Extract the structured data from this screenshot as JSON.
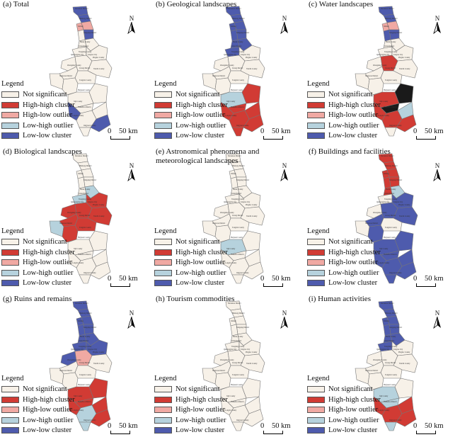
{
  "colors": {
    "not_significant": "#f7f1e8",
    "high_high": "#d13b34",
    "high_low": "#f0a9a3",
    "low_high": "#b6d2dd",
    "low_low": "#4e5bad",
    "outline": "#777777",
    "extra_dark": "#1a1a1a"
  },
  "legend": {
    "title": "Legend",
    "items": [
      {
        "key": "ns",
        "label": "Not significant"
      },
      {
        "key": "hh",
        "label": "High-high cluster"
      },
      {
        "key": "hl",
        "label": "High-low outlier"
      },
      {
        "key": "lh",
        "label": "Low-high outlier"
      },
      {
        "key": "ll",
        "label": "Low-low cluster"
      }
    ]
  },
  "scale": {
    "zero": "0",
    "text": "50 km"
  },
  "north_label": "N",
  "panels": [
    {
      "title": "(a) Total",
      "regions": [
        "ll",
        "ll",
        "hl",
        "hl",
        "ll",
        "ns",
        "ns",
        "ns",
        "ns",
        "ns",
        "ns",
        "ns",
        "ns",
        "ns",
        "ns",
        "ns",
        "ns",
        "ns",
        "ns",
        "ns",
        "ll",
        "ns",
        "ns",
        "ll",
        "ns"
      ]
    },
    {
      "title": "(b) Geological landscapes",
      "regions": [
        "ll",
        "ll",
        "ll",
        "ll",
        "ll",
        "ll",
        "ll",
        "ll",
        "ll",
        "ns",
        "ns",
        "ns",
        "ns",
        "ns",
        "ns",
        "ns",
        "ns",
        "lh",
        "hh",
        "hh",
        "hh",
        "hh",
        "hh",
        "hh",
        "hh"
      ]
    },
    {
      "title": "(c) Water landscapes",
      "regions": [
        "ll",
        "ll",
        "hl",
        "hl",
        "ll",
        "ll",
        "ns",
        "ns",
        "ns",
        "ns",
        "ns",
        "hh",
        "ns",
        "ns",
        "ns",
        "ns",
        "ns",
        "hh",
        "xd",
        "xd",
        "hh",
        "lh",
        "hh",
        "hh",
        "ns"
      ]
    },
    {
      "title": "(d) Biological landscapes",
      "regions": [
        "ns",
        "ns",
        "ns",
        "ns",
        "ns",
        "ns",
        "ns",
        "lh",
        "lh",
        "hh",
        "hh",
        "hh",
        "hh",
        "hh",
        "hh",
        "lh",
        "hh",
        "ns",
        "ns",
        "ns",
        "ns",
        "ns",
        "ns",
        "ns",
        "ns"
      ]
    },
    {
      "title": "(e) Astronomical phenomena and meteorological landscapes",
      "regions": [
        "ns",
        "ns",
        "ns",
        "ns",
        "ns",
        "ns",
        "ns",
        "ns",
        "ns",
        "ns",
        "ns",
        "ns",
        "ns",
        "ns",
        "ns",
        "ns",
        "ns",
        "lh",
        "ns",
        "ns",
        "ns",
        "ns",
        "ns",
        "ns",
        "ns"
      ]
    },
    {
      "title": "(f) Buildings and facilities",
      "regions": [
        "hh",
        "hh",
        "hh",
        "hh",
        "hh",
        "hh",
        "hh",
        "lh",
        "ns",
        "ll",
        "ns",
        "ll",
        "ll",
        "ll",
        "ns",
        "ns",
        "ll",
        "ll",
        "ll",
        "ll",
        "ll",
        "ll",
        "ll",
        "ll",
        "ll"
      ]
    },
    {
      "title": "(g) Ruins and remains",
      "regions": [
        "ll",
        "ll",
        "ll",
        "ll",
        "ll",
        "ll",
        "ll",
        "ll",
        "ll",
        "ll",
        "ll",
        "hl",
        "ns",
        "ns",
        "ns",
        "ns",
        "ns",
        "hh",
        "hh",
        "hh",
        "hh",
        "hh",
        "lh",
        "hh",
        "lh"
      ]
    },
    {
      "title": "(h) Tourism commodities",
      "regions": [
        "ns",
        "ns",
        "ns",
        "ns",
        "ns",
        "ns",
        "ns",
        "ns",
        "ns",
        "ns",
        "ns",
        "ns",
        "ns",
        "ns",
        "ns",
        "ns",
        "ns",
        "ns",
        "ns",
        "ns",
        "ns",
        "ns",
        "ns",
        "ns",
        "ns"
      ]
    },
    {
      "title": "(i) Human activities",
      "regions": [
        "ll",
        "ll",
        "ll",
        "ll",
        "ll",
        "ll",
        "ll",
        "ll",
        "ll",
        "ns",
        "ns",
        "ns",
        "ns",
        "ns",
        "ns",
        "ns",
        "ns",
        "lh",
        "ns",
        "lh",
        "hh",
        "hh",
        "hh",
        "hh",
        "lh"
      ]
    }
  ]
}
